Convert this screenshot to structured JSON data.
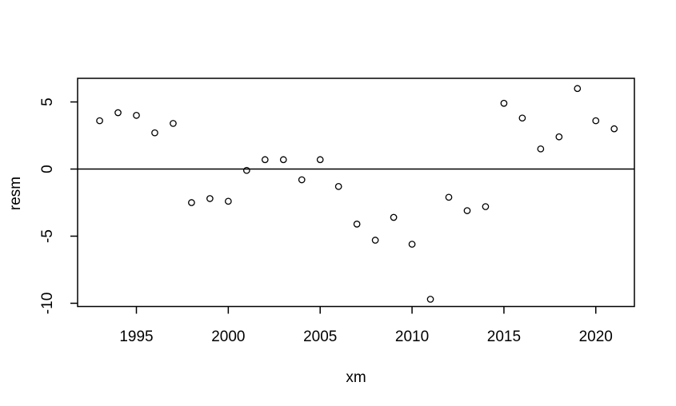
{
  "figure": {
    "kind": "r-base-scatter-plot",
    "colors": {
      "background": "#ffffff",
      "axis": "#000000",
      "marker": "#000000"
    }
  },
  "chart_data": {
    "type": "scatter",
    "title": "",
    "xlabel": "xm",
    "ylabel": "resm",
    "marker": "open-circle",
    "grid": false,
    "legend": "none",
    "x": [
      1993,
      1994,
      1995,
      1996,
      1997,
      1998,
      1999,
      2000,
      2001,
      2002,
      2003,
      2004,
      2005,
      2006,
      2007,
      2008,
      2009,
      2010,
      2011,
      2012,
      2013,
      2014,
      2015,
      2016,
      2017,
      2018,
      2019,
      2020,
      2021
    ],
    "y": [
      3.6,
      4.2,
      4.0,
      2.7,
      3.4,
      -2.5,
      -2.2,
      -2.4,
      -0.1,
      0.7,
      0.7,
      -0.8,
      0.7,
      -1.3,
      -4.1,
      -5.3,
      -3.6,
      -5.6,
      -9.7,
      -2.1,
      -3.1,
      -2.8,
      4.9,
      3.8,
      1.5,
      2.4,
      6.0,
      3.6,
      3.0
    ],
    "x_ticks": [
      1995,
      2000,
      2005,
      2010,
      2015,
      2020
    ],
    "y_ticks": [
      5,
      0,
      -5,
      -10
    ],
    "xlim": [
      1991.8,
      2022.1
    ],
    "ylim": [
      -10.24,
      6.76
    ],
    "reference_line_y": 0
  }
}
